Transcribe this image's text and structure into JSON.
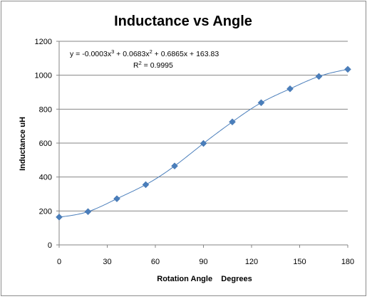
{
  "chart_data": {
    "type": "scatter",
    "title": "Inductance vs Angle",
    "xlabel": "Rotation Angle    Degrees",
    "ylabel": "Inductance  uH",
    "xlim": [
      0,
      180
    ],
    "ylim": [
      0,
      1200
    ],
    "x_ticks": [
      0,
      30,
      60,
      90,
      120,
      150,
      180
    ],
    "y_ticks": [
      0,
      200,
      400,
      600,
      800,
      1000,
      1200
    ],
    "grid": "horizontal",
    "series": [
      {
        "name": "Inductance",
        "color": "#4a7ebb",
        "marker": "diamond",
        "x": [
          0,
          18,
          36,
          54,
          72,
          90,
          108,
          126,
          144,
          162,
          180
        ],
        "y": [
          164,
          196,
          272,
          355,
          465,
          598,
          725,
          838,
          920,
          993,
          1035
        ]
      }
    ],
    "trendline": {
      "type": "polynomial",
      "order": 3,
      "coefficients": [
        -0.0003,
        0.0683,
        0.6865,
        163.83
      ],
      "color": "#4a7ebb",
      "equation_prefix": "y = -0.0003x",
      "equation_sup1": "3",
      "equation_mid1": " + 0.0683x",
      "equation_sup2": "2",
      "equation_rest": " + 0.6865x + 163.83",
      "r2_prefix": "R",
      "r2_sup": "2",
      "r2_rest": " = 0.9995"
    }
  }
}
